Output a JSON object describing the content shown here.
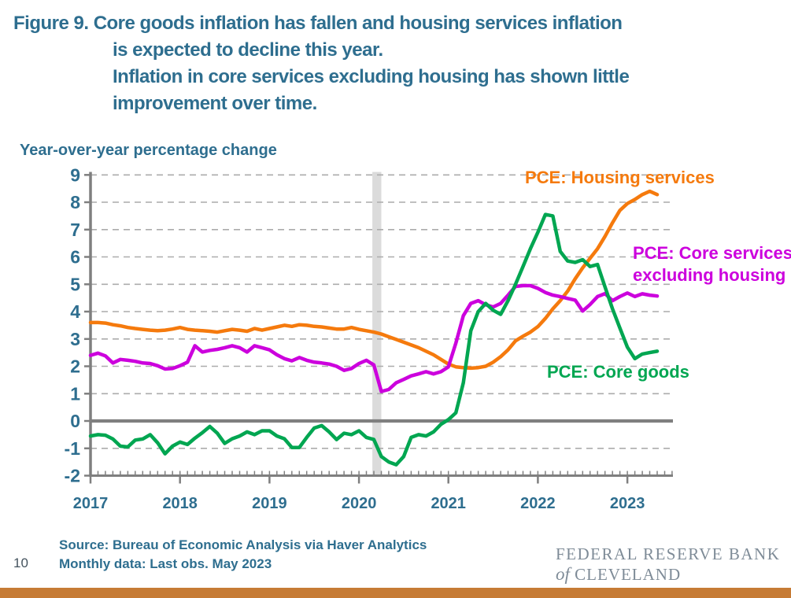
{
  "title": {
    "line1": "Figure 9. Core goods inflation has fallen and housing services inflation",
    "line2": "is expected to decline this year.",
    "line3": "Inflation in core services excluding housing has shown little",
    "line4": "improvement over time."
  },
  "ylabel": "Year-over-year percentage change",
  "legend": {
    "housing": "PCE: Housing services",
    "core_services_line1": "PCE: Core services",
    "core_services_line2": "excluding housing",
    "core_goods": "PCE: Core goods"
  },
  "source": {
    "line1": "Source: Bureau of Economic Analysis via Haver Analytics",
    "line2": "Monthly data: Last obs. May 2023"
  },
  "page_number": "10",
  "logo": {
    "line1": "FEDERAL RESERVE BANK",
    "line2_of": "of",
    "line2_name": "CLEVELAND"
  },
  "colors": {
    "title_text": "#2E6E8F",
    "axis_gray": "#7F7F7F",
    "gridline": "#ACACAC",
    "recession_band": "#DBDBDB",
    "housing_orange": "#F57A0D",
    "core_services_magenta": "#CC00DD",
    "core_goods_green": "#00A651",
    "bottom_bar": "#C67B35",
    "logo_gray": "#7E8B97"
  },
  "chart_data": {
    "type": "line",
    "title": "Year-over-year percentage change",
    "xlabel": "",
    "ylabel": "Year-over-year percentage change",
    "ylim": [
      -2,
      9
    ],
    "grid": "dashed horizontal",
    "legend_position": "labels next to lines",
    "x_monthly_start": "2017-01",
    "x_monthly_end": "2023-05",
    "x_ticks": [
      "2017",
      "2018",
      "2019",
      "2020",
      "2021",
      "2022",
      "2023"
    ],
    "y_ticks": [
      9,
      8,
      7,
      6,
      5,
      4,
      3,
      2,
      1,
      0,
      -1,
      -2
    ],
    "recession_band": {
      "start": "2020-02",
      "end": "2020-04"
    },
    "series": [
      {
        "name": "PCE: Housing services",
        "color": "#F57A0D",
        "values": [
          3.6,
          3.6,
          3.58,
          3.52,
          3.48,
          3.42,
          3.38,
          3.35,
          3.32,
          3.3,
          3.32,
          3.36,
          3.42,
          3.35,
          3.32,
          3.3,
          3.28,
          3.25,
          3.3,
          3.35,
          3.32,
          3.28,
          3.38,
          3.32,
          3.38,
          3.44,
          3.5,
          3.46,
          3.52,
          3.5,
          3.46,
          3.44,
          3.4,
          3.36,
          3.36,
          3.42,
          3.35,
          3.3,
          3.25,
          3.18,
          3.08,
          2.98,
          2.88,
          2.78,
          2.68,
          2.55,
          2.42,
          2.25,
          2.08,
          1.98,
          1.95,
          1.93,
          1.95,
          2.0,
          2.15,
          2.35,
          2.6,
          2.93,
          3.1,
          3.25,
          3.45,
          3.75,
          4.1,
          4.4,
          4.75,
          5.2,
          5.6,
          5.95,
          6.3,
          6.75,
          7.25,
          7.7,
          7.95,
          8.1,
          8.28,
          8.4,
          8.28
        ]
      },
      {
        "name": "PCE: Core services excluding housing",
        "color": "#CC00DD",
        "values": [
          2.4,
          2.48,
          2.38,
          2.12,
          2.25,
          2.22,
          2.18,
          2.12,
          2.1,
          2.02,
          1.9,
          1.92,
          2.02,
          2.15,
          2.75,
          2.52,
          2.58,
          2.62,
          2.68,
          2.75,
          2.68,
          2.52,
          2.75,
          2.68,
          2.6,
          2.42,
          2.28,
          2.2,
          2.32,
          2.22,
          2.15,
          2.12,
          2.08,
          2.0,
          1.85,
          1.92,
          2.1,
          2.22,
          2.05,
          1.08,
          1.15,
          1.4,
          1.52,
          1.65,
          1.72,
          1.8,
          1.72,
          1.8,
          1.98,
          2.85,
          3.85,
          4.3,
          4.4,
          4.25,
          4.17,
          4.3,
          4.6,
          4.92,
          4.95,
          4.95,
          4.85,
          4.7,
          4.6,
          4.55,
          4.48,
          4.42,
          4.02,
          4.26,
          4.55,
          4.66,
          4.4,
          4.55,
          4.68,
          4.55,
          4.65,
          4.6,
          4.57
        ]
      },
      {
        "name": "PCE: Core goods",
        "color": "#00A651",
        "values": [
          -0.55,
          -0.5,
          -0.52,
          -0.66,
          -0.92,
          -0.95,
          -0.7,
          -0.66,
          -0.5,
          -0.8,
          -1.2,
          -0.92,
          -0.77,
          -0.86,
          -0.63,
          -0.43,
          -0.2,
          -0.45,
          -0.82,
          -0.65,
          -0.55,
          -0.4,
          -0.5,
          -0.36,
          -0.36,
          -0.55,
          -0.65,
          -0.97,
          -0.97,
          -0.6,
          -0.26,
          -0.17,
          -0.4,
          -0.68,
          -0.45,
          -0.5,
          -0.36,
          -0.6,
          -0.68,
          -1.3,
          -1.5,
          -1.6,
          -1.3,
          -0.6,
          -0.5,
          -0.55,
          -0.4,
          -0.12,
          0.05,
          0.3,
          1.4,
          3.3,
          4.0,
          4.3,
          4.05,
          3.9,
          4.4,
          5.0,
          5.65,
          6.3,
          6.9,
          7.55,
          7.5,
          6.2,
          5.85,
          5.8,
          5.9,
          5.65,
          5.72,
          4.9,
          4.1,
          3.4,
          2.7,
          2.28,
          2.45,
          2.5,
          2.55
        ]
      }
    ]
  }
}
